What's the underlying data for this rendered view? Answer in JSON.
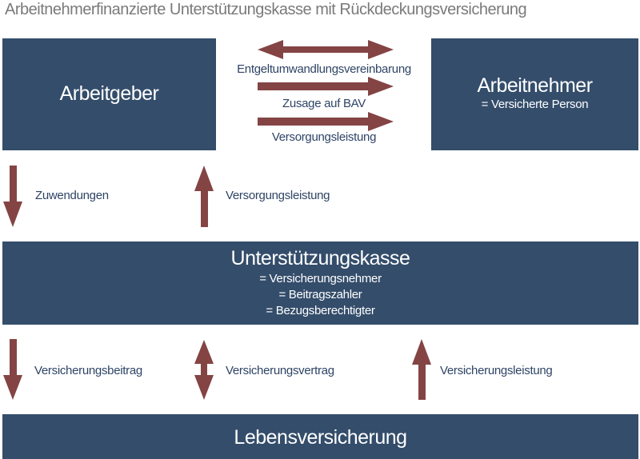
{
  "title": "Arbeitnehmerfinanzierte Unterstützungskasse mit Rückdeckungsversicherung",
  "colors": {
    "box": "#344d6b",
    "arrow": "#844444",
    "text": "#2e4466",
    "title": "#7a7a7a"
  },
  "arbeitgeber": {
    "label": "Arbeitgeber"
  },
  "arbeitnehmer": {
    "label": "Arbeitnehmer",
    "sub": "= Versicherte Person"
  },
  "top_arrows": [
    "Entgeltumwandlungsvereinbarung",
    "Zusage auf BAV",
    "Versorgungsleistung"
  ],
  "middle_arrows": [
    "Zuwendungen",
    "Versorgungsleistung"
  ],
  "kasse": {
    "label": "Unterstützungskasse",
    "subs": [
      "= Versicherungsnehmer",
      "= Beitragszahler",
      "= Bezugsberechtigter"
    ]
  },
  "bottom_arrows": [
    "Versicherungsbeitrag",
    "Versicherungsvertrag",
    "Versicherungsleistung"
  ],
  "versicherung": {
    "label": "Lebensversicherung"
  }
}
